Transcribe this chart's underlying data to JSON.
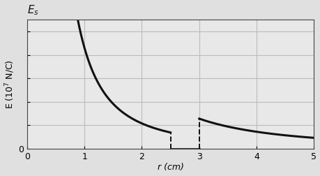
{
  "xlabel": "r (cm)",
  "ylabel": "E (10$^7$ N/C)",
  "xlim": [
    0,
    5
  ],
  "ylim": [
    0,
    5.5
  ],
  "xticks": [
    0,
    1,
    2,
    3,
    4,
    5
  ],
  "yticks": [
    0,
    1,
    2,
    3,
    4,
    5
  ],
  "curve_color": "#111111",
  "curve_lw": 2.2,
  "dashed_color": "#111111",
  "dashed_lw": 1.4,
  "grid_color": "#bbbbbb",
  "bg_color": "#e8e8e8",
  "fig_bg": "#e0e0e0",
  "Es_fontsize": 11,
  "label_fontsize": 9,
  "tick_fontsize": 9,
  "inner_r_start": 0.85,
  "inner_r_end": 2.5,
  "outer_r_start": 3.0,
  "outer_r_end": 5.0,
  "inner_k": 4.3,
  "outer_k": 11.5
}
